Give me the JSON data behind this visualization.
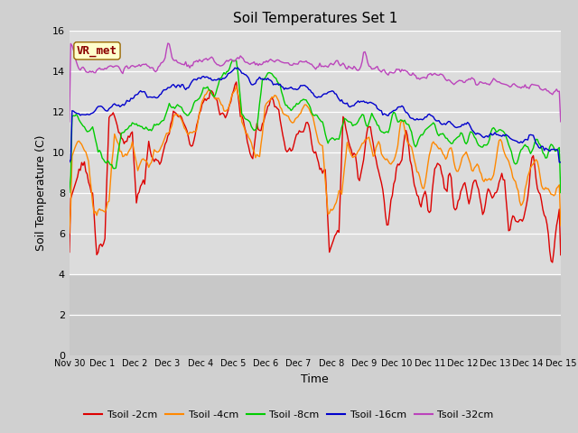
{
  "title": "Soil Temperatures Set 1",
  "xlabel": "Time",
  "ylabel": "Soil Temperature (C)",
  "ylim": [
    0,
    16
  ],
  "yticks": [
    0,
    2,
    4,
    6,
    8,
    10,
    12,
    14,
    16
  ],
  "series": {
    "Tsoil -2cm": {
      "color": "#dd0000",
      "lw": 1.0
    },
    "Tsoil -4cm": {
      "color": "#ff8800",
      "lw": 1.0
    },
    "Tsoil -8cm": {
      "color": "#00cc00",
      "lw": 1.0
    },
    "Tsoil -16cm": {
      "color": "#0000cc",
      "lw": 1.0
    },
    "Tsoil -32cm": {
      "color": "#bb44bb",
      "lw": 1.0
    }
  },
  "annotation": {
    "text": "VR_met",
    "fontsize": 9,
    "color": "#8b0000",
    "bg": "#ffffcc",
    "bordercolor": "#996600"
  },
  "x_tick_labels": [
    "Nov 30",
    "Dec 1",
    "Dec 2",
    "Dec 3",
    "Dec 4",
    "Dec 5",
    "Dec 6",
    "Dec 7",
    "Dec 8",
    "Dec 9",
    "Dec 10",
    "Dec 11",
    "Dec 12",
    "Dec 13",
    "Dec 14",
    "Dec 15"
  ],
  "plot_bg_upper": "#dcdcdc",
  "plot_bg_lower": "#c8c8c8",
  "fig_bg": "#d0d0d0"
}
